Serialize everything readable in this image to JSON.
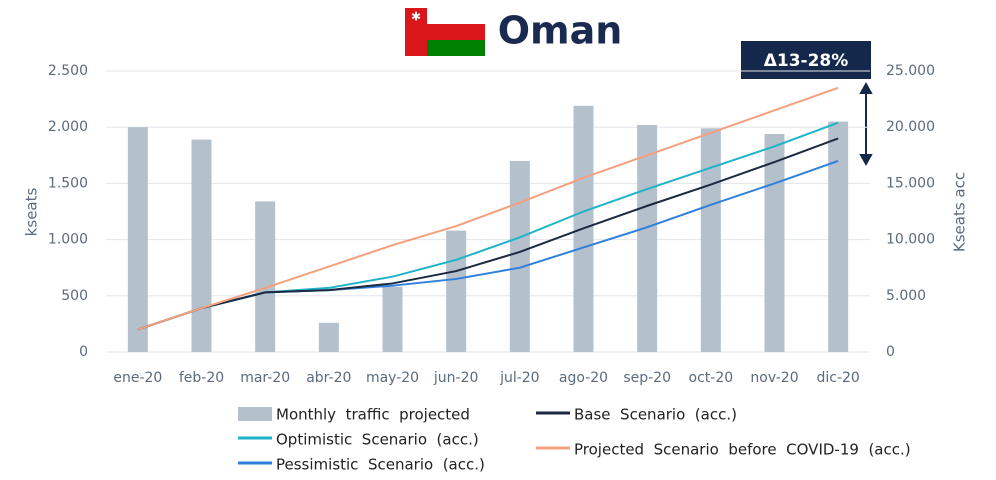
{
  "chart_data": {
    "type": "combo",
    "title": "Oman",
    "annotation": "Δ13-28%",
    "y_label": "kseats",
    "y2_label": "Kseats acc",
    "categories": [
      "ene-20",
      "feb-20",
      "mar-20",
      "abr-20",
      "may-20",
      "jun-20",
      "jul-20",
      "ago-20",
      "sep-20",
      "oct-20",
      "nov-20",
      "dic-20"
    ],
    "ylim": [
      0,
      2500
    ],
    "yticks": [
      0,
      500,
      {
        "value": 1000,
        "label": "1.000"
      },
      {
        "value": 1500,
        "label": "1.500"
      },
      {
        "value": 2000,
        "label": "2.000"
      },
      {
        "value": 2500,
        "label": "2.500"
      }
    ],
    "y2lim": [
      0,
      25000
    ],
    "y2ticks": [
      0,
      {
        "value": 5000,
        "label": "5.000"
      },
      {
        "value": 10000,
        "label": "10.000"
      },
      {
        "value": 15000,
        "label": "15.000"
      },
      {
        "value": 20000,
        "label": "20.000"
      },
      {
        "value": 25000,
        "label": "25.000"
      }
    ],
    "grid": true,
    "series": [
      {
        "name": "Monthly  traffic  projected",
        "type": "bar",
        "color": "#b4c0cc",
        "values": [
          2000,
          1890,
          1340,
          260,
          580,
          1080,
          1700,
          2190,
          2020,
          1990,
          1940,
          2050
        ]
      },
      {
        "name": "Optimistic  Scenario  (acc.)",
        "type": "line",
        "axis": "y2",
        "color": "#1fb3c8",
        "values": [
          2000,
          3900,
          5300,
          5700,
          6700,
          8200,
          10200,
          12500,
          14500,
          16400,
          18300,
          20400
        ]
      },
      {
        "name": "Pessimistic  Scenario  (acc.)",
        "type": "line",
        "axis": "y2",
        "color": "#2f7fdc",
        "values": [
          2000,
          3900,
          5300,
          5500,
          5900,
          6500,
          7500,
          9300,
          11100,
          13100,
          15000,
          17000
        ]
      },
      {
        "name": "Base  Scenario  (acc.)",
        "type": "line",
        "axis": "y2",
        "color": "#1b2a41",
        "values": [
          2000,
          3900,
          5300,
          5500,
          6100,
          7200,
          8900,
          11000,
          13000,
          14900,
          16900,
          19000
        ]
      },
      {
        "name": "Projected  Scenario  before  COVID-19  (acc.)",
        "type": "line",
        "axis": "y2",
        "color": "#f4a07e",
        "values": [
          2000,
          3900,
          5700,
          7600,
          9500,
          11200,
          13300,
          15500,
          17500,
          19500,
          21500,
          23500
        ]
      }
    ]
  }
}
